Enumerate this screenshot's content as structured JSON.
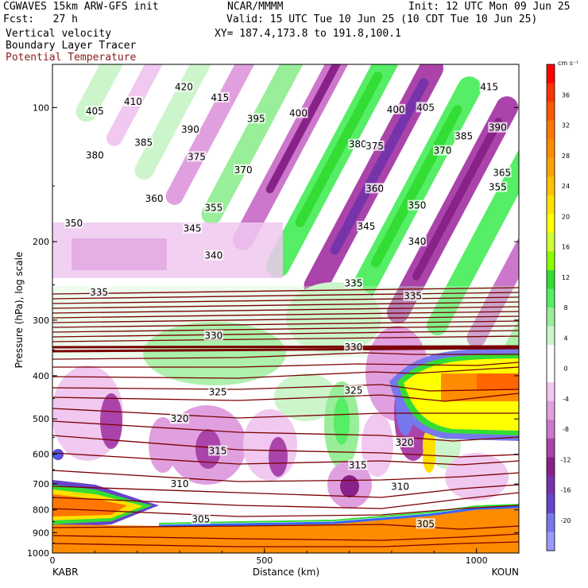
{
  "header": {
    "model": "CGWAVES 15km ARW-GFS init",
    "org": "NCAR/MMMM",
    "init": "Init: 12 UTC Mon 09 Jun 25",
    "fcst": "Fcst:   27 h",
    "valid": "Valid: 15 UTC Tue 10 Jun 25 (10 CDT Tue 10 Jun 25)",
    "field1": "Vertical velocity",
    "xy": "XY= 187.4,173.8 to 191.8,100.1",
    "field2": "Boundary Layer Tracer",
    "field3": "Potential Temperature"
  },
  "chart_data": {
    "type": "heatmap",
    "xlabel": "Distance (km)",
    "ylabel": "Pressure (hPa), log scale",
    "x_range": [
      0,
      1100
    ],
    "y_range": [
      1000,
      80
    ],
    "x_ticks": [
      0,
      500,
      1000
    ],
    "y_ticks": [
      100,
      200,
      300,
      400,
      500,
      600,
      700,
      800,
      900,
      1000
    ],
    "x_endpoints": {
      "left": "KABR",
      "right": "KOUN"
    },
    "colorbar": {
      "unit": "cm s⁻¹",
      "ticks": [
        36,
        32,
        28,
        24,
        20,
        16,
        12,
        8,
        4,
        0,
        -4,
        -8,
        -12,
        -16,
        -20
      ],
      "colors": [
        "#ff0000",
        "#ff3300",
        "#ff5500",
        "#ff7700",
        "#ff8c00",
        "#ffa000",
        "#ffc000",
        "#ffe000",
        "#ffff00",
        "#ccff33",
        "#88ff00",
        "#33dd33",
        "#55ee66",
        "#99ee99",
        "#ccf5cc",
        "#ffffff",
        "#ffffff",
        "#f0c8f0",
        "#e0a0e0",
        "#cc77cc",
        "#aa44aa",
        "#882288",
        "#7733aa",
        "#6644cc",
        "#7777ee",
        "#9999ff"
      ]
    },
    "theta_labels": [
      {
        "value": "420",
        "x": 310,
        "p": 90
      },
      {
        "value": "415",
        "x": 395,
        "p": 95
      },
      {
        "value": "415",
        "x": 1030,
        "p": 90
      },
      {
        "value": "410",
        "x": 190,
        "p": 97
      },
      {
        "value": "405",
        "x": 100,
        "p": 102
      },
      {
        "value": "405",
        "x": 880,
        "p": 100
      },
      {
        "value": "400",
        "x": 580,
        "p": 103
      },
      {
        "value": "400",
        "x": 810,
        "p": 101
      },
      {
        "value": "395",
        "x": 480,
        "p": 106
      },
      {
        "value": "390",
        "x": 325,
        "p": 112
      },
      {
        "value": "390",
        "x": 1050,
        "p": 111
      },
      {
        "value": "385",
        "x": 215,
        "p": 120
      },
      {
        "value": "385",
        "x": 970,
        "p": 116
      },
      {
        "value": "380",
        "x": 100,
        "p": 128
      },
      {
        "value": "380",
        "x": 720,
        "p": 121
      },
      {
        "value": "375",
        "x": 760,
        "p": 122
      },
      {
        "value": "375",
        "x": 340,
        "p": 129
      },
      {
        "value": "370",
        "x": 450,
        "p": 138
      },
      {
        "value": "370",
        "x": 920,
        "p": 125
      },
      {
        "value": "365",
        "x": 1060,
        "p": 140
      },
      {
        "value": "360",
        "x": 240,
        "p": 160
      },
      {
        "value": "360",
        "x": 760,
        "p": 152
      },
      {
        "value": "355",
        "x": 380,
        "p": 168
      },
      {
        "value": "355",
        "x": 1050,
        "p": 151
      },
      {
        "value": "350",
        "x": 50,
        "p": 182
      },
      {
        "value": "350",
        "x": 860,
        "p": 166
      },
      {
        "value": "345",
        "x": 330,
        "p": 187
      },
      {
        "value": "345",
        "x": 740,
        "p": 185
      },
      {
        "value": "340",
        "x": 380,
        "p": 215
      },
      {
        "value": "340",
        "x": 860,
        "p": 200
      },
      {
        "value": "335",
        "x": 110,
        "p": 260
      },
      {
        "value": "335",
        "x": 710,
        "p": 248
      },
      {
        "value": "335",
        "x": 850,
        "p": 265
      },
      {
        "value": "330",
        "x": 380,
        "p": 325
      },
      {
        "value": "330",
        "x": 710,
        "p": 345
      },
      {
        "value": "325",
        "x": 390,
        "p": 435
      },
      {
        "value": "325",
        "x": 710,
        "p": 432
      },
      {
        "value": "320",
        "x": 300,
        "p": 500
      },
      {
        "value": "320",
        "x": 830,
        "p": 565
      },
      {
        "value": "315",
        "x": 390,
        "p": 590
      },
      {
        "value": "315",
        "x": 720,
        "p": 635
      },
      {
        "value": "310",
        "x": 300,
        "p": 700
      },
      {
        "value": "310",
        "x": 820,
        "p": 710
      },
      {
        "value": "305",
        "x": 350,
        "p": 840
      },
      {
        "value": "305",
        "x": 880,
        "p": 860
      }
    ]
  }
}
